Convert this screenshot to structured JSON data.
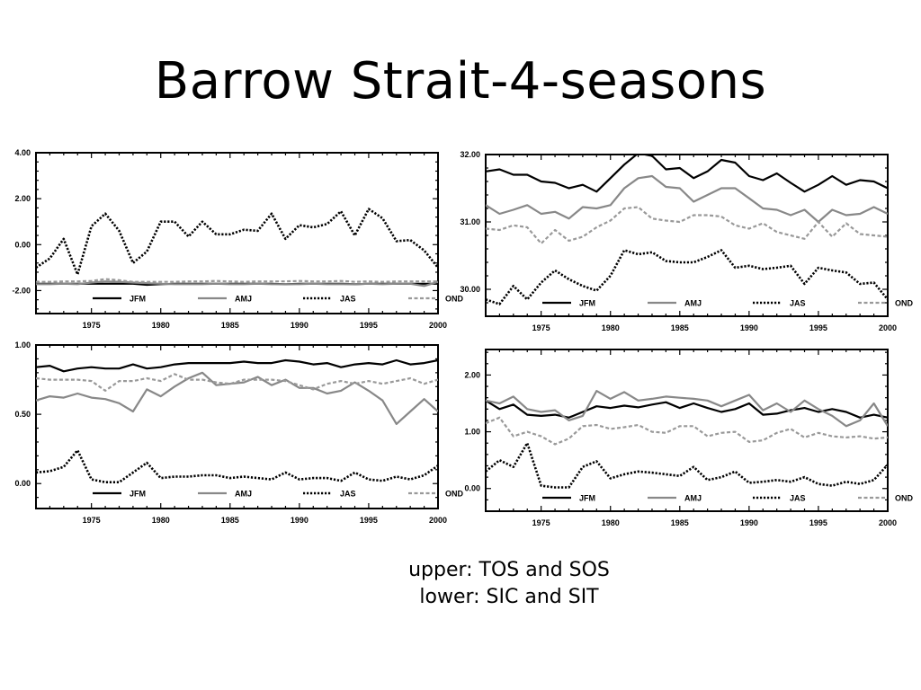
{
  "title": "Barrow Strait-4-seasons",
  "caption": {
    "line1": "upper: TOS and SOS",
    "line2": "lower: SIC and SIT"
  },
  "chart_data": [
    {
      "type": "line",
      "panel": "top-left",
      "title": "",
      "xlabel": "",
      "ylabel": "",
      "x": [
        1971,
        1972,
        1973,
        1974,
        1975,
        1976,
        1977,
        1978,
        1979,
        1980,
        1981,
        1982,
        1983,
        1984,
        1985,
        1986,
        1987,
        1988,
        1989,
        1990,
        1991,
        1992,
        1993,
        1994,
        1995,
        1996,
        1997,
        1998,
        1999,
        2000
      ],
      "xlim": [
        1971,
        2000
      ],
      "ylim": [
        -3,
        4
      ],
      "xticks": [
        1975,
        1980,
        1985,
        1990,
        1995,
        2000
      ],
      "xtick_labels": [
        "1975",
        "1980",
        "1985",
        "1990",
        "1995",
        "2000"
      ],
      "yticks": [
        -2,
        0,
        2,
        4
      ],
      "ytick_labels": [
        "-2.00",
        "0.00",
        "2.00",
        "4.00"
      ],
      "legend_position": "bottom",
      "series": [
        {
          "name": "JFM",
          "style": "solid",
          "color": "#000000",
          "values": [
            -1.7,
            -1.7,
            -1.7,
            -1.7,
            -1.7,
            -1.7,
            -1.7,
            -1.7,
            -1.75,
            -1.72,
            -1.7,
            -1.7,
            -1.7,
            -1.7,
            -1.7,
            -1.7,
            -1.7,
            -1.7,
            -1.72,
            -1.7,
            -1.7,
            -1.7,
            -1.7,
            -1.72,
            -1.7,
            -1.7,
            -1.7,
            -1.7,
            -1.7,
            -1.7
          ]
        },
        {
          "name": "AMJ",
          "style": "solid",
          "color": "#888888",
          "values": [
            -1.72,
            -1.72,
            -1.7,
            -1.72,
            -1.65,
            -1.6,
            -1.62,
            -1.65,
            -1.68,
            -1.7,
            -1.72,
            -1.72,
            -1.72,
            -1.7,
            -1.72,
            -1.72,
            -1.7,
            -1.72,
            -1.72,
            -1.72,
            -1.7,
            -1.72,
            -1.72,
            -1.72,
            -1.7,
            -1.72,
            -1.7,
            -1.7,
            -1.8,
            -1.62
          ]
        },
        {
          "name": "JAS",
          "style": "dotted",
          "color": "#000000",
          "values": [
            -1.0,
            -0.6,
            0.25,
            -1.3,
            0.8,
            1.35,
            0.6,
            -0.8,
            -0.3,
            1.0,
            1.0,
            0.35,
            1.0,
            0.45,
            0.45,
            0.65,
            0.6,
            1.35,
            0.25,
            0.85,
            0.75,
            0.9,
            1.45,
            0.4,
            1.55,
            1.15,
            0.15,
            0.2,
            -0.25,
            -1.0
          ]
        },
        {
          "name": "OND",
          "style": "dashed",
          "color": "#999999",
          "values": [
            -1.62,
            -1.62,
            -1.6,
            -1.6,
            -1.58,
            -1.5,
            -1.55,
            -1.62,
            -1.62,
            -1.62,
            -1.62,
            -1.6,
            -1.6,
            -1.58,
            -1.6,
            -1.62,
            -1.6,
            -1.6,
            -1.6,
            -1.58,
            -1.6,
            -1.6,
            -1.58,
            -1.62,
            -1.6,
            -1.62,
            -1.6,
            -1.6,
            -1.6,
            -1.6
          ]
        }
      ]
    },
    {
      "type": "line",
      "panel": "top-right",
      "title": "",
      "xlabel": "",
      "ylabel": "",
      "x": [
        1971,
        1972,
        1973,
        1974,
        1975,
        1976,
        1977,
        1978,
        1979,
        1980,
        1981,
        1982,
        1983,
        1984,
        1985,
        1986,
        1987,
        1988,
        1989,
        1990,
        1991,
        1992,
        1993,
        1994,
        1995,
        1996,
        1997,
        1998,
        1999,
        2000
      ],
      "xlim": [
        1971,
        2000
      ],
      "ylim": [
        29.6,
        32.0
      ],
      "xticks": [
        1975,
        1980,
        1985,
        1990,
        1995,
        2000
      ],
      "xtick_labels": [
        "1975",
        "1980",
        "1985",
        "1990",
        "1995",
        "2000"
      ],
      "yticks": [
        30,
        31,
        32
      ],
      "ytick_labels": [
        "30.00",
        "31.00",
        "32.00"
      ],
      "legend_position": "bottom",
      "series": [
        {
          "name": "JFM",
          "style": "solid",
          "color": "#000000",
          "values": [
            31.75,
            31.78,
            31.7,
            31.7,
            31.6,
            31.58,
            31.5,
            31.55,
            31.45,
            31.65,
            31.85,
            32.02,
            31.98,
            31.78,
            31.8,
            31.65,
            31.75,
            31.92,
            31.88,
            31.68,
            31.62,
            31.72,
            31.58,
            31.45,
            31.55,
            31.68,
            31.55,
            31.62,
            31.6,
            31.5
          ]
        },
        {
          "name": "AMJ",
          "style": "solid",
          "color": "#888888",
          "values": [
            31.25,
            31.12,
            31.18,
            31.25,
            31.12,
            31.15,
            31.05,
            31.22,
            31.2,
            31.25,
            31.5,
            31.65,
            31.68,
            31.52,
            31.5,
            31.3,
            31.4,
            31.5,
            31.5,
            31.35,
            31.2,
            31.18,
            31.1,
            31.18,
            31.0,
            31.18,
            31.1,
            31.12,
            31.22,
            31.12
          ]
        },
        {
          "name": "JAS",
          "style": "dotted",
          "color": "#000000",
          "values": [
            29.85,
            29.78,
            30.05,
            29.85,
            30.1,
            30.28,
            30.15,
            30.05,
            29.98,
            30.2,
            30.58,
            30.52,
            30.55,
            30.42,
            30.4,
            30.4,
            30.48,
            30.58,
            30.32,
            30.35,
            30.3,
            30.32,
            30.35,
            30.08,
            30.32,
            30.28,
            30.25,
            30.08,
            30.1,
            29.85
          ]
        },
        {
          "name": "OND",
          "style": "dashed",
          "color": "#999999",
          "values": [
            30.9,
            30.88,
            30.95,
            30.92,
            30.68,
            30.88,
            30.72,
            30.78,
            30.92,
            31.02,
            31.2,
            31.22,
            31.05,
            31.02,
            31.0,
            31.1,
            31.1,
            31.08,
            30.95,
            30.9,
            30.98,
            30.85,
            30.8,
            30.75,
            31.0,
            30.78,
            30.98,
            30.82,
            30.8,
            30.78
          ]
        }
      ]
    },
    {
      "type": "line",
      "panel": "bottom-left",
      "title": "",
      "xlabel": "",
      "ylabel": "",
      "x": [
        1971,
        1972,
        1973,
        1974,
        1975,
        1976,
        1977,
        1978,
        1979,
        1980,
        1981,
        1982,
        1983,
        1984,
        1985,
        1986,
        1987,
        1988,
        1989,
        1990,
        1991,
        1992,
        1993,
        1994,
        1995,
        1996,
        1997,
        1998,
        1999,
        2000
      ],
      "xlim": [
        1971,
        2000
      ],
      "ylim": [
        -0.18,
        1.0
      ],
      "xticks": [
        1975,
        1980,
        1985,
        1990,
        1995,
        2000
      ],
      "xtick_labels": [
        "1975",
        "1980",
        "1985",
        "1990",
        "1995",
        "2000"
      ],
      "yticks": [
        0,
        0.5,
        1
      ],
      "ytick_labels": [
        "0.00",
        "0.50",
        "1.00"
      ],
      "legend_position": "bottom",
      "series": [
        {
          "name": "JFM",
          "style": "solid",
          "color": "#000000",
          "values": [
            0.84,
            0.85,
            0.81,
            0.83,
            0.84,
            0.83,
            0.83,
            0.86,
            0.83,
            0.84,
            0.86,
            0.87,
            0.87,
            0.87,
            0.87,
            0.88,
            0.87,
            0.87,
            0.89,
            0.88,
            0.86,
            0.87,
            0.84,
            0.86,
            0.87,
            0.86,
            0.89,
            0.86,
            0.87,
            0.89
          ]
        },
        {
          "name": "AMJ",
          "style": "solid",
          "color": "#888888",
          "values": [
            0.6,
            0.63,
            0.62,
            0.65,
            0.62,
            0.61,
            0.58,
            0.52,
            0.68,
            0.63,
            0.7,
            0.76,
            0.8,
            0.71,
            0.72,
            0.73,
            0.77,
            0.71,
            0.75,
            0.69,
            0.69,
            0.65,
            0.67,
            0.73,
            0.67,
            0.6,
            0.43,
            0.52,
            0.61,
            0.52
          ]
        },
        {
          "name": "JAS",
          "style": "dotted",
          "color": "#000000",
          "values": [
            0.08,
            0.09,
            0.12,
            0.24,
            0.03,
            0.01,
            0.01,
            0.08,
            0.15,
            0.04,
            0.05,
            0.05,
            0.06,
            0.06,
            0.04,
            0.05,
            0.04,
            0.03,
            0.08,
            0.03,
            0.04,
            0.04,
            0.02,
            0.08,
            0.03,
            0.02,
            0.05,
            0.03,
            0.06,
            0.13
          ]
        },
        {
          "name": "OND",
          "style": "dashed",
          "color": "#999999",
          "values": [
            0.76,
            0.75,
            0.75,
            0.75,
            0.74,
            0.67,
            0.74,
            0.74,
            0.76,
            0.74,
            0.79,
            0.75,
            0.75,
            0.73,
            0.72,
            0.75,
            0.75,
            0.75,
            0.74,
            0.71,
            0.68,
            0.72,
            0.74,
            0.72,
            0.74,
            0.72,
            0.74,
            0.76,
            0.72,
            0.75
          ]
        }
      ]
    },
    {
      "type": "line",
      "panel": "bottom-right",
      "title": "",
      "xlabel": "",
      "ylabel": "",
      "x": [
        1971,
        1972,
        1973,
        1974,
        1975,
        1976,
        1977,
        1978,
        1979,
        1980,
        1981,
        1982,
        1983,
        1984,
        1985,
        1986,
        1987,
        1988,
        1989,
        1990,
        1991,
        1992,
        1993,
        1994,
        1995,
        1996,
        1997,
        1998,
        1999,
        2000
      ],
      "xlim": [
        1971,
        2000
      ],
      "ylim": [
        -0.4,
        2.45
      ],
      "xticks": [
        1975,
        1980,
        1985,
        1990,
        1995,
        2000
      ],
      "xtick_labels": [
        "1975",
        "1980",
        "1985",
        "1990",
        "1995",
        "2000"
      ],
      "yticks": [
        0,
        1,
        2
      ],
      "ytick_labels": [
        "0.00",
        "1.00",
        "2.00"
      ],
      "legend_position": "bottom",
      "series": [
        {
          "name": "JFM",
          "style": "solid",
          "color": "#000000",
          "values": [
            1.55,
            1.4,
            1.48,
            1.3,
            1.28,
            1.3,
            1.25,
            1.35,
            1.45,
            1.42,
            1.46,
            1.43,
            1.48,
            1.52,
            1.42,
            1.5,
            1.42,
            1.35,
            1.4,
            1.5,
            1.3,
            1.32,
            1.38,
            1.42,
            1.35,
            1.4,
            1.35,
            1.25,
            1.3,
            1.25
          ]
        },
        {
          "name": "AMJ",
          "style": "solid",
          "color": "#888888",
          "values": [
            1.55,
            1.5,
            1.62,
            1.4,
            1.35,
            1.38,
            1.2,
            1.28,
            1.72,
            1.58,
            1.7,
            1.55,
            1.58,
            1.62,
            1.6,
            1.58,
            1.55,
            1.45,
            1.55,
            1.65,
            1.38,
            1.5,
            1.35,
            1.55,
            1.4,
            1.28,
            1.1,
            1.2,
            1.5,
            1.1
          ]
        },
        {
          "name": "JAS",
          "style": "dotted",
          "color": "#000000",
          "values": [
            0.3,
            0.5,
            0.38,
            0.8,
            0.05,
            0.02,
            0.02,
            0.38,
            0.48,
            0.18,
            0.25,
            0.3,
            0.28,
            0.25,
            0.22,
            0.38,
            0.15,
            0.2,
            0.3,
            0.1,
            0.12,
            0.15,
            0.12,
            0.2,
            0.08,
            0.05,
            0.12,
            0.08,
            0.15,
            0.42
          ]
        },
        {
          "name": "OND",
          "style": "dashed",
          "color": "#999999",
          "values": [
            1.15,
            1.25,
            0.92,
            1.0,
            0.92,
            0.78,
            0.88,
            1.1,
            1.12,
            1.05,
            1.08,
            1.12,
            1.0,
            0.98,
            1.1,
            1.1,
            0.92,
            0.98,
            1.0,
            0.82,
            0.85,
            0.98,
            1.05,
            0.9,
            0.98,
            0.92,
            0.9,
            0.92,
            0.88,
            0.9
          ]
        }
      ]
    }
  ]
}
